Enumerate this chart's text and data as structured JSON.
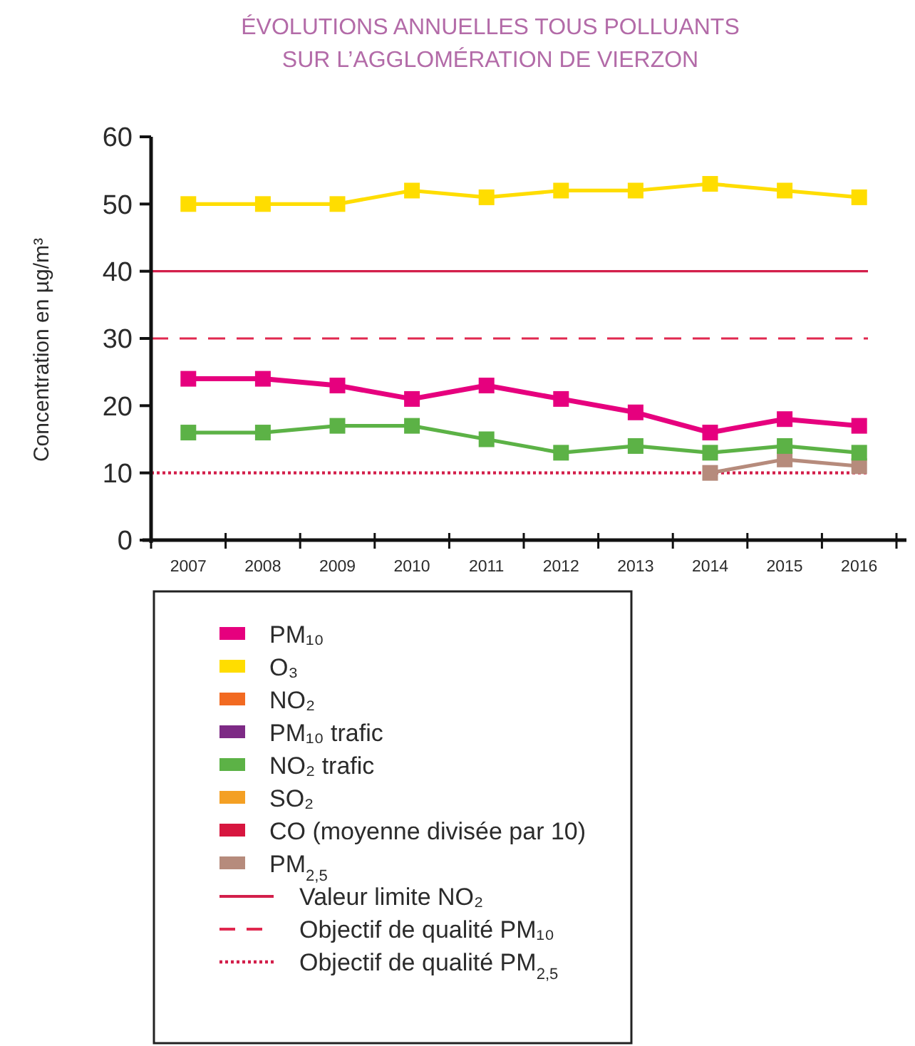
{
  "chart_data": {
    "type": "line",
    "title": "ÉVOLUTIONS ANNUELLES TOUS POLLUANTS\nSUR L’AGGLOMÉRATION DE VIERZON",
    "ylabel": "Concentration en µg/m³",
    "categories": [
      "2007",
      "2008",
      "2009",
      "2010",
      "2011",
      "2012",
      "2013",
      "2014",
      "2015",
      "2016"
    ],
    "series": [
      {
        "name": "PM₁₀",
        "color": "#e6007e",
        "values": [
          24,
          24,
          23,
          21,
          23,
          21,
          19,
          16,
          18,
          17
        ]
      },
      {
        "name": "O₃",
        "color": "#ffdd00",
        "values": [
          50,
          50,
          50,
          52,
          51,
          52,
          52,
          53,
          52,
          51
        ]
      },
      {
        "name": "NO₂",
        "color": "#f26a21",
        "values": [
          null,
          null,
          null,
          null,
          null,
          null,
          null,
          null,
          null,
          null
        ]
      },
      {
        "name": "PM₁₀ trafic",
        "color": "#7d2a85",
        "values": [
          null,
          null,
          null,
          null,
          null,
          null,
          null,
          null,
          null,
          null
        ]
      },
      {
        "name": "NO₂ trafic",
        "color": "#5cb246",
        "values": [
          16,
          16,
          17,
          17,
          15,
          13,
          14,
          13,
          14,
          13
        ]
      },
      {
        "name": "SO₂",
        "color": "#f4a024",
        "values": [
          null,
          null,
          null,
          null,
          null,
          null,
          null,
          null,
          null,
          null
        ]
      },
      {
        "name": "CO (moyenne divisée par 10)",
        "color": "#d7163f",
        "values": [
          null,
          null,
          null,
          null,
          null,
          null,
          null,
          null,
          null,
          null
        ]
      },
      {
        "name": "PM$_{2,5}$",
        "color": "#b68b7c",
        "values": [
          null,
          null,
          null,
          null,
          null,
          null,
          null,
          10,
          12,
          11
        ]
      }
    ],
    "ylim": [
      0,
      60
    ],
    "yticks": [
      0,
      10,
      20,
      30,
      40,
      50,
      60
    ],
    "ref_lines": [
      {
        "axis": "y",
        "value": 40,
        "label": "Valeur limite NO₂",
        "color": "#d31f4b",
        "line_style": "solid"
      },
      {
        "axis": "y",
        "value": 30,
        "label": "Objectif de qualité PM₁₀",
        "color": "#e0284f",
        "line_style": "dashed"
      },
      {
        "axis": "y",
        "value": 10,
        "label": "Objectif de qualité PM$_{2,5}$",
        "color": "#d31f4b",
        "line_style": "dotted"
      }
    ],
    "legend": "bottom",
    "marker": "square",
    "line_style": "solid"
  }
}
